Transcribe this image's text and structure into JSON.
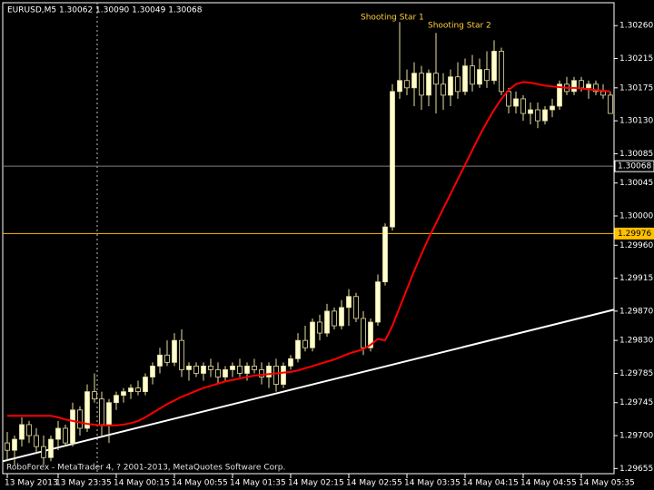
{
  "chart_data": {
    "type": "candlestick",
    "header": "EURUSD,M5  1.30062 1.30090 1.30049 1.30068",
    "footer": "RoboForex - MetaTrader 4, ? 2001-2013, MetaQuotes Software Corp.",
    "annotations": [
      "Shooting Star 1",
      "Shooting Star 2"
    ],
    "categories": [
      "13 May 2013",
      null,
      null,
      null,
      null,
      null,
      null,
      "13 May 23:35",
      null,
      null,
      null,
      null,
      null,
      null,
      null,
      "14 May 00:15",
      null,
      null,
      null,
      null,
      null,
      null,
      null,
      "14 May 00:55",
      null,
      null,
      null,
      null,
      null,
      null,
      null,
      "14 May 01:35",
      null,
      null,
      null,
      null,
      null,
      null,
      null,
      "14 May 02:15",
      null,
      null,
      null,
      null,
      null,
      null,
      null,
      "14 May 02:55",
      null,
      null,
      null,
      null,
      null,
      null,
      null,
      "14 May 03:35",
      null,
      null,
      null,
      null,
      null,
      null,
      null,
      "14 May 04:15",
      null,
      null,
      null,
      null,
      null,
      null,
      null,
      "14 May 04:55",
      null,
      null,
      null,
      null,
      null,
      null,
      null,
      "14 May 05:35",
      null,
      null,
      null,
      null
    ],
    "open": [
      1.2969,
      1.2968,
      1.29695,
      1.29715,
      1.297,
      1.29685,
      1.2967,
      1.29695,
      1.2971,
      1.2969,
      1.29735,
      1.2971,
      1.2976,
      1.2975,
      1.29715,
      1.29745,
      1.29755,
      1.2976,
      1.29765,
      1.2976,
      1.2978,
      1.29795,
      1.2981,
      1.298,
      1.2983,
      1.2979,
      1.29795,
      1.29785,
      1.29795,
      1.2979,
      1.2978,
      1.2979,
      1.29795,
      1.29785,
      1.29795,
      1.2979,
      1.2978,
      1.29795,
      1.2977,
      1.29795,
      1.29805,
      1.2983,
      1.2982,
      1.29855,
      1.2984,
      1.2987,
      1.2985,
      1.29875,
      1.2989,
      1.2986,
      1.2982,
      1.29855,
      1.2991,
      1.29985,
      1.3017,
      1.30185,
      1.30175,
      1.30195,
      1.30165,
      1.30195,
      1.3018,
      1.30165,
      1.3019,
      1.3017,
      1.30205,
      1.3018,
      1.302,
      1.30185,
      1.30225,
      1.3017,
      1.3015,
      1.3016,
      1.3014,
      1.30145,
      1.3013,
      1.30145,
      1.3015,
      1.3018,
      1.3017,
      1.30185,
      1.30175,
      1.3018,
      1.3017,
      1.30165
    ],
    "high": [
      1.29705,
      1.297,
      1.29725,
      1.2972,
      1.2971,
      1.297,
      1.297,
      1.2972,
      1.29715,
      1.29745,
      1.2974,
      1.2977,
      1.29785,
      1.2976,
      1.2975,
      1.2976,
      1.29765,
      1.2977,
      1.29775,
      1.29785,
      1.298,
      1.2982,
      1.2983,
      1.2984,
      1.29845,
      1.298,
      1.298,
      1.298,
      1.29805,
      1.298,
      1.29795,
      1.298,
      1.29805,
      1.298,
      1.29805,
      1.298,
      1.298,
      1.29805,
      1.298,
      1.2981,
      1.2984,
      1.2985,
      1.2986,
      1.29865,
      1.2988,
      1.29875,
      1.29885,
      1.299,
      1.29895,
      1.2987,
      1.2986,
      1.2992,
      1.2999,
      1.3018,
      1.30265,
      1.302,
      1.3021,
      1.30205,
      1.302,
      1.3025,
      1.30195,
      1.302,
      1.3021,
      1.30215,
      1.3022,
      1.30215,
      1.30225,
      1.3024,
      1.3023,
      1.30175,
      1.3017,
      1.30165,
      1.30155,
      1.30155,
      1.3015,
      1.3016,
      1.30185,
      1.3019,
      1.3019,
      1.3019,
      1.30185,
      1.30185,
      1.3018,
      1.3017
    ],
    "low": [
      1.29665,
      1.2966,
      1.29685,
      1.2969,
      1.29675,
      1.2966,
      1.29665,
      1.2968,
      1.29685,
      1.29685,
      1.297,
      1.29705,
      1.29745,
      1.297,
      1.2969,
      1.29735,
      1.29745,
      1.2975,
      1.29755,
      1.29755,
      1.2977,
      1.29785,
      1.29795,
      1.29795,
      1.2978,
      1.29775,
      1.2978,
      1.29775,
      1.2978,
      1.2977,
      1.29775,
      1.2978,
      1.2978,
      1.29775,
      1.29785,
      1.2977,
      1.29765,
      1.2976,
      1.29765,
      1.2979,
      1.298,
      1.29815,
      1.29815,
      1.2983,
      1.29835,
      1.29845,
      1.29845,
      1.2985,
      1.29855,
      1.2981,
      1.29815,
      1.2985,
      1.29905,
      1.2998,
      1.3016,
      1.30165,
      1.3015,
      1.30145,
      1.3015,
      1.3014,
      1.30145,
      1.3015,
      1.3016,
      1.30165,
      1.3017,
      1.30175,
      1.30175,
      1.3018,
      1.30165,
      1.3014,
      1.3014,
      1.3013,
      1.30125,
      1.3012,
      1.30125,
      1.30135,
      1.30145,
      1.30165,
      1.30165,
      1.3017,
      1.3016,
      1.30165,
      1.3016,
      1.3014
    ],
    "close": [
      1.2968,
      1.29695,
      1.29715,
      1.297,
      1.29685,
      1.2967,
      1.29695,
      1.2971,
      1.2969,
      1.29735,
      1.2971,
      1.2976,
      1.2975,
      1.29715,
      1.29745,
      1.29755,
      1.2976,
      1.29765,
      1.2976,
      1.2978,
      1.29795,
      1.2981,
      1.298,
      1.2983,
      1.2979,
      1.29795,
      1.29785,
      1.29795,
      1.2979,
      1.2978,
      1.2979,
      1.29795,
      1.29785,
      1.29795,
      1.2979,
      1.2978,
      1.29795,
      1.2977,
      1.29795,
      1.29805,
      1.2983,
      1.2982,
      1.29855,
      1.2984,
      1.2987,
      1.2985,
      1.29875,
      1.2989,
      1.2986,
      1.2982,
      1.29855,
      1.2991,
      1.29985,
      1.3017,
      1.30185,
      1.30175,
      1.30195,
      1.30165,
      1.30195,
      1.3018,
      1.30165,
      1.3019,
      1.3017,
      1.30205,
      1.3018,
      1.302,
      1.30185,
      1.30225,
      1.3017,
      1.3015,
      1.3016,
      1.3014,
      1.30145,
      1.3013,
      1.30145,
      1.3015,
      1.3018,
      1.3017,
      1.30185,
      1.30175,
      1.3018,
      1.3017,
      1.30165,
      1.3014
    ],
    "ma": [
      1.29727,
      1.29727,
      1.29727,
      1.29727,
      1.29727,
      1.29727,
      1.29727,
      1.29725,
      1.29722,
      1.2972,
      1.29718,
      1.29716,
      1.29715,
      1.29714,
      1.29714,
      1.29714,
      1.29715,
      1.29717,
      1.2972,
      1.29725,
      1.29731,
      1.29737,
      1.29743,
      1.29748,
      1.29753,
      1.29757,
      1.29761,
      1.29765,
      1.29768,
      1.29771,
      1.29774,
      1.29776,
      1.29778,
      1.2978,
      1.29782,
      1.29783,
      1.29784,
      1.29785,
      1.29786,
      1.29787,
      1.29789,
      1.29792,
      1.29795,
      1.29798,
      1.29801,
      1.29804,
      1.29808,
      1.29812,
      1.29815,
      1.29818,
      1.29824,
      1.29832,
      1.2983,
      1.2985,
      1.29875,
      1.299,
      1.29925,
      1.29948,
      1.2997,
      1.2999,
      1.3001,
      1.3003,
      1.3005,
      1.3007,
      1.3009,
      1.3011,
      1.30128,
      1.30145,
      1.3016,
      1.30172,
      1.3018,
      1.30183,
      1.30182,
      1.3018,
      1.30178,
      1.30177,
      1.30176,
      1.30175,
      1.30175,
      1.30174,
      1.30173,
      1.30172,
      1.30171,
      1.3017
    ],
    "ma_color": "#ff0000",
    "trendline": [
      1.29665,
      1.29872
    ],
    "trendline_color": "#ffffff",
    "hlines": [
      {
        "value": 1.30068,
        "color": "#808080"
      },
      {
        "value": 1.29976,
        "color": "#ffc000"
      }
    ],
    "up_color": "#ffffd0",
    "down_color": "#000000",
    "wick_color": "#e8e0a0",
    "ylim": [
      1.29648,
      1.30295
    ],
    "yticks": [
      {
        "value": 1.3026,
        "label": "1.30260"
      },
      1.30215,
      1.30175,
      {
        "value": 1.3013,
        "label": "1.30130"
      },
      1.30085,
      1.30045,
      {
        "value": 1.3,
        "label": "1.30000"
      },
      {
        "value": 1.2996,
        "label": "1.29960"
      },
      1.29915,
      {
        "value": 1.2987,
        "label": "1.29870"
      },
      {
        "value": 1.2983,
        "label": "1.29830"
      },
      1.29785,
      1.29745,
      {
        "value": 1.297,
        "label": "1.29700"
      },
      1.29655
    ],
    "grid": false
  }
}
